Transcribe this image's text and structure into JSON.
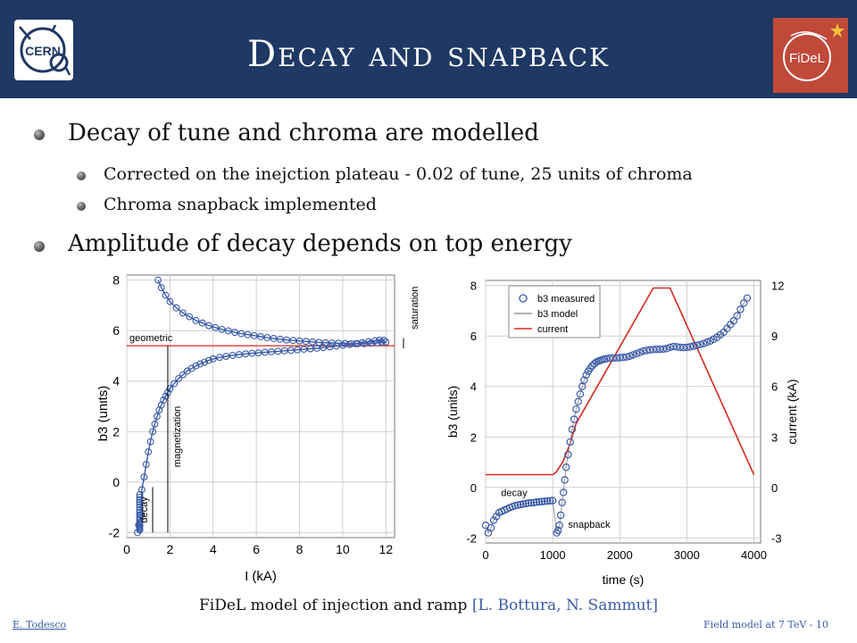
{
  "slide": {
    "title": "Decay and snapback",
    "logos": {
      "left": "CERN",
      "right": "FiDeL"
    },
    "bullets": [
      {
        "level": 1,
        "text": "Decay of tune and chroma are modelled"
      },
      {
        "level": 2,
        "text": "Corrected on the inejction plateau  -  0.02 of tune, 25 units of chroma"
      },
      {
        "level": 2,
        "text": "Chroma snapback implemented"
      },
      {
        "level": 1,
        "text": "Amplitude of decay depends on top energy"
      }
    ],
    "caption": {
      "text": "FiDeL model of injection and ramp ",
      "ref": "[L. Bottura, N. Sammut]"
    },
    "footer": {
      "author": "E. Todesco",
      "page": "Field model at 7 TeV - 10"
    }
  },
  "chart_data": [
    {
      "type": "scatter",
      "xlabel": "I (kA)",
      "ylabel": "b3 (units)",
      "xlim": [
        0,
        12.4
      ],
      "ylim": [
        -2.2,
        8.2
      ],
      "xticks": [
        0,
        2,
        4,
        6,
        8,
        10,
        12
      ],
      "yticks": [
        -2,
        0,
        2,
        4,
        6,
        8
      ],
      "grid": true,
      "geometric_level": 5.4,
      "annotations": [
        "geometric",
        "magnetization",
        "decay",
        "saturation"
      ],
      "series": [
        {
          "values": [
            [
              0.5,
              -2.0
            ],
            [
              0.55,
              -1.7
            ],
            [
              0.6,
              -1.5
            ],
            [
              0.65,
              -1.3
            ],
            [
              0.7,
              -0.3
            ],
            [
              0.8,
              0.2
            ],
            [
              0.9,
              0.7
            ],
            [
              1.0,
              1.2
            ],
            [
              1.1,
              1.6
            ],
            [
              1.2,
              2.0
            ],
            [
              1.3,
              2.3
            ],
            [
              1.4,
              2.6
            ],
            [
              1.5,
              2.85
            ],
            [
              1.6,
              3.05
            ],
            [
              1.7,
              3.25
            ],
            [
              1.8,
              3.4
            ],
            [
              1.9,
              3.55
            ],
            [
              2.0,
              3.7
            ],
            [
              2.2,
              3.9
            ],
            [
              2.4,
              4.1
            ],
            [
              2.6,
              4.25
            ],
            [
              2.8,
              4.4
            ],
            [
              3.0,
              4.5
            ],
            [
              3.2,
              4.6
            ],
            [
              3.4,
              4.68
            ],
            [
              3.6,
              4.75
            ],
            [
              3.8,
              4.82
            ],
            [
              4.0,
              4.88
            ],
            [
              4.3,
              4.94
            ],
            [
              4.6,
              4.98
            ],
            [
              4.9,
              5.02
            ],
            [
              5.2,
              5.05
            ],
            [
              5.5,
              5.08
            ],
            [
              5.8,
              5.1
            ],
            [
              6.1,
              5.12
            ],
            [
              6.4,
              5.14
            ],
            [
              6.7,
              5.16
            ],
            [
              7.0,
              5.18
            ],
            [
              7.3,
              5.2
            ],
            [
              7.6,
              5.22
            ],
            [
              7.9,
              5.24
            ],
            [
              8.2,
              5.26
            ],
            [
              8.5,
              5.28
            ],
            [
              8.8,
              5.3
            ],
            [
              9.1,
              5.33
            ],
            [
              9.4,
              5.36
            ],
            [
              9.7,
              5.39
            ],
            [
              10.0,
              5.42
            ],
            [
              10.3,
              5.45
            ],
            [
              10.6,
              5.48
            ],
            [
              10.9,
              5.52
            ],
            [
              11.2,
              5.56
            ],
            [
              11.5,
              5.6
            ],
            [
              11.7,
              5.62
            ],
            [
              11.9,
              5.62
            ],
            [
              12.0,
              5.55
            ],
            [
              11.8,
              5.55
            ],
            [
              11.6,
              5.52
            ],
            [
              11.3,
              5.5
            ],
            [
              11.0,
              5.48
            ],
            [
              10.7,
              5.48
            ],
            [
              10.4,
              5.48
            ],
            [
              10.1,
              5.49
            ],
            [
              9.8,
              5.5
            ],
            [
              9.5,
              5.51
            ],
            [
              9.2,
              5.52
            ],
            [
              8.9,
              5.53
            ],
            [
              8.6,
              5.55
            ],
            [
              8.3,
              5.57
            ],
            [
              8.0,
              5.59
            ],
            [
              7.7,
              5.61
            ],
            [
              7.4,
              5.63
            ],
            [
              7.1,
              5.66
            ],
            [
              6.8,
              5.69
            ],
            [
              6.5,
              5.72
            ],
            [
              6.2,
              5.76
            ],
            [
              5.9,
              5.8
            ],
            [
              5.6,
              5.84
            ],
            [
              5.3,
              5.88
            ],
            [
              5.0,
              5.93
            ],
            [
              4.7,
              5.99
            ],
            [
              4.4,
              6.05
            ],
            [
              4.1,
              6.12
            ],
            [
              3.8,
              6.2
            ],
            [
              3.5,
              6.3
            ],
            [
              3.2,
              6.4
            ],
            [
              2.9,
              6.55
            ],
            [
              2.6,
              6.7
            ],
            [
              2.3,
              6.9
            ],
            [
              2.0,
              7.15
            ],
            [
              1.8,
              7.4
            ],
            [
              1.6,
              7.7
            ],
            [
              1.45,
              8.0
            ]
          ]
        },
        {
          "values": [
            [
              0.6,
              -1.9
            ],
            [
              0.6,
              -1.85
            ],
            [
              0.6,
              -1.8
            ],
            [
              0.6,
              -1.75
            ],
            [
              0.6,
              -1.7
            ],
            [
              0.6,
              -1.65
            ],
            [
              0.6,
              -1.6
            ],
            [
              0.6,
              -1.5
            ],
            [
              0.6,
              -1.4
            ],
            [
              0.6,
              -1.3
            ],
            [
              0.6,
              -1.2
            ],
            [
              0.6,
              -1.1
            ],
            [
              0.6,
              -1.0
            ],
            [
              0.6,
              -0.9
            ],
            [
              0.6,
              -0.8
            ],
            [
              0.6,
              -0.7
            ],
            [
              0.6,
              -0.6
            ],
            [
              0.6,
              -0.5
            ]
          ]
        }
      ]
    },
    {
      "type": "line",
      "xlabel": "time (s)",
      "ylabel": "b3 (units)",
      "y2label": "current (kA)",
      "xlim": [
        0,
        4100
      ],
      "ylim": [
        -2.2,
        8.2
      ],
      "y2lim": [
        -3.3,
        12.3
      ],
      "xticks": [
        0,
        1000,
        2000,
        3000,
        4000
      ],
      "yticks": [
        -2,
        0,
        2,
        4,
        6,
        8
      ],
      "y2ticks": [
        -3,
        0,
        3,
        6,
        9,
        12
      ],
      "grid": true,
      "legend": "top-left",
      "annotations": [
        "decay",
        "snapback"
      ],
      "series": [
        {
          "name": "b3 measured",
          "color": "#3a5aa8",
          "values": [
            [
              0,
              -1.5
            ],
            [
              40,
              -1.8
            ],
            [
              80,
              -1.6
            ],
            [
              120,
              -1.3
            ],
            [
              160,
              -1.15
            ],
            [
              200,
              -1.0
            ],
            [
              240,
              -0.95
            ],
            [
              280,
              -0.9
            ],
            [
              320,
              -0.85
            ],
            [
              360,
              -0.8
            ],
            [
              400,
              -0.76
            ],
            [
              440,
              -0.72
            ],
            [
              480,
              -0.7
            ],
            [
              520,
              -0.68
            ],
            [
              560,
              -0.66
            ],
            [
              600,
              -0.64
            ],
            [
              640,
              -0.62
            ],
            [
              680,
              -0.61
            ],
            [
              720,
              -0.6
            ],
            [
              760,
              -0.58
            ],
            [
              800,
              -0.57
            ],
            [
              840,
              -0.56
            ],
            [
              880,
              -0.55
            ],
            [
              920,
              -0.54
            ],
            [
              960,
              -0.53
            ],
            [
              1000,
              -0.52
            ],
            [
              1060,
              -1.8
            ],
            [
              1080,
              -1.7
            ],
            [
              1100,
              -1.5
            ],
            [
              1120,
              -1.1
            ],
            [
              1140,
              -0.6
            ],
            [
              1160,
              -0.2
            ],
            [
              1180,
              0.3
            ],
            [
              1200,
              0.8
            ],
            [
              1230,
              1.3
            ],
            [
              1260,
              1.8
            ],
            [
              1290,
              2.3
            ],
            [
              1320,
              2.7
            ],
            [
              1350,
              3.1
            ],
            [
              1380,
              3.4
            ],
            [
              1410,
              3.7
            ],
            [
              1440,
              4.0
            ],
            [
              1470,
              4.25
            ],
            [
              1500,
              4.45
            ],
            [
              1530,
              4.6
            ],
            [
              1560,
              4.72
            ],
            [
              1590,
              4.82
            ],
            [
              1620,
              4.9
            ],
            [
              1650,
              4.96
            ],
            [
              1680,
              5.0
            ],
            [
              1710,
              5.03
            ],
            [
              1740,
              5.06
            ],
            [
              1770,
              5.08
            ],
            [
              1800,
              5.1
            ],
            [
              1850,
              5.12
            ],
            [
              1900,
              5.13
            ],
            [
              1950,
              5.13
            ],
            [
              2000,
              5.14
            ],
            [
              2050,
              5.15
            ],
            [
              2100,
              5.17
            ],
            [
              2150,
              5.2
            ],
            [
              2200,
              5.25
            ],
            [
              2250,
              5.3
            ],
            [
              2300,
              5.35
            ],
            [
              2350,
              5.4
            ],
            [
              2400,
              5.43
            ],
            [
              2450,
              5.45
            ],
            [
              2500,
              5.46
            ],
            [
              2550,
              5.47
            ],
            [
              2600,
              5.47
            ],
            [
              2650,
              5.48
            ],
            [
              2700,
              5.5
            ],
            [
              2750,
              5.55
            ],
            [
              2800,
              5.58
            ],
            [
              2850,
              5.57
            ],
            [
              2900,
              5.55
            ],
            [
              2950,
              5.54
            ],
            [
              3000,
              5.55
            ],
            [
              3050,
              5.57
            ],
            [
              3100,
              5.6
            ],
            [
              3150,
              5.63
            ],
            [
              3200,
              5.66
            ],
            [
              3250,
              5.7
            ],
            [
              3300,
              5.75
            ],
            [
              3350,
              5.8
            ],
            [
              3400,
              5.87
            ],
            [
              3450,
              5.95
            ],
            [
              3500,
              6.05
            ],
            [
              3550,
              6.15
            ],
            [
              3600,
              6.3
            ],
            [
              3650,
              6.45
            ],
            [
              3700,
              6.6
            ],
            [
              3750,
              6.8
            ],
            [
              3800,
              7.05
            ],
            [
              3850,
              7.3
            ],
            [
              3900,
              7.5
            ]
          ]
        },
        {
          "name": "b3 model",
          "color": "#9a9a9a"
        },
        {
          "name": "current",
          "color": "#d62a20",
          "axis": "y2",
          "values": [
            [
              0,
              0.76
            ],
            [
              1000,
              0.76
            ],
            [
              1050,
              0.9
            ],
            [
              1150,
              1.5
            ],
            [
              1250,
              2.5
            ],
            [
              1350,
              3.8
            ],
            [
              2500,
              11.85
            ],
            [
              2750,
              11.85
            ],
            [
              4000,
              0.76
            ]
          ]
        }
      ]
    }
  ]
}
